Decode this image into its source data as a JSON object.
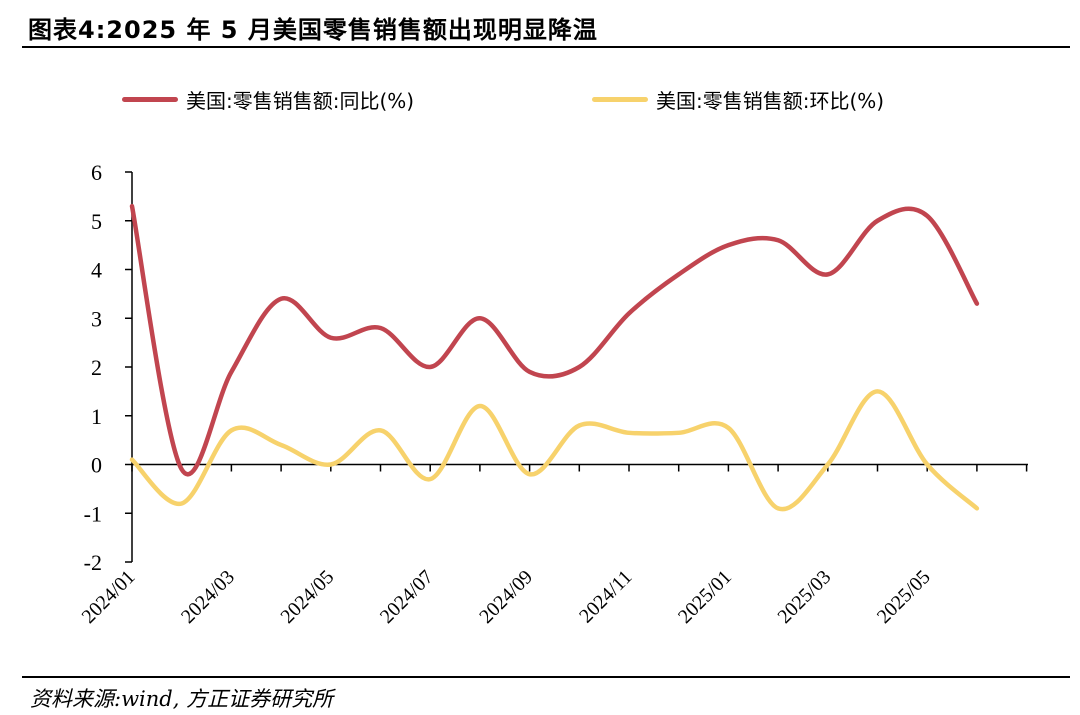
{
  "header": {
    "title": "图表4:2025 年 5 月美国零售销售额出现明显降温",
    "source": "资料来源:wind, 方正证券研究所"
  },
  "chart_data": {
    "type": "line",
    "title": "图表4:2025 年 5 月美国零售销售额出现明显降温",
    "xlabel": "",
    "ylabel": "",
    "ylim": [
      -2,
      6
    ],
    "yticks": [
      "6",
      "5",
      "4",
      "3",
      "2",
      "1",
      "0",
      "-1",
      "-2"
    ],
    "yticks_values": [
      6,
      5,
      4,
      3,
      2,
      1,
      0,
      -1,
      -2
    ],
    "x": [
      "2024/01",
      "2024/02",
      "2024/03",
      "2024/04",
      "2024/05",
      "2024/06",
      "2024/07",
      "2024/08",
      "2024/09",
      "2024/10",
      "2024/11",
      "2024/12",
      "2025/01",
      "2025/02",
      "2025/03",
      "2025/04",
      "2025/05",
      "2025/06"
    ],
    "xtick_labels": [
      "2024/01",
      "2024/03",
      "2024/05",
      "2024/07",
      "2024/09",
      "2024/11",
      "2025/01",
      "2025/03",
      "2025/05"
    ],
    "legend_position": "top",
    "grid": false,
    "series": [
      {
        "name": "美国:零售销售额:同比(%)",
        "color": "#c1454f",
        "values": [
          5.3,
          -0.1,
          1.9,
          3.4,
          2.6,
          2.8,
          2.0,
          3.0,
          1.9,
          2.0,
          3.1,
          3.9,
          4.5,
          4.6,
          3.9,
          5.0,
          5.1,
          3.3
        ]
      },
      {
        "name": "美国:零售销售额:环比(%)",
        "color": "#f7d26c",
        "values": [
          0.1,
          -0.8,
          0.7,
          0.4,
          0.0,
          0.7,
          -0.3,
          1.2,
          -0.2,
          0.8,
          0.65,
          0.65,
          0.75,
          -0.9,
          0.0,
          1.5,
          0.0,
          -0.9
        ]
      }
    ]
  }
}
